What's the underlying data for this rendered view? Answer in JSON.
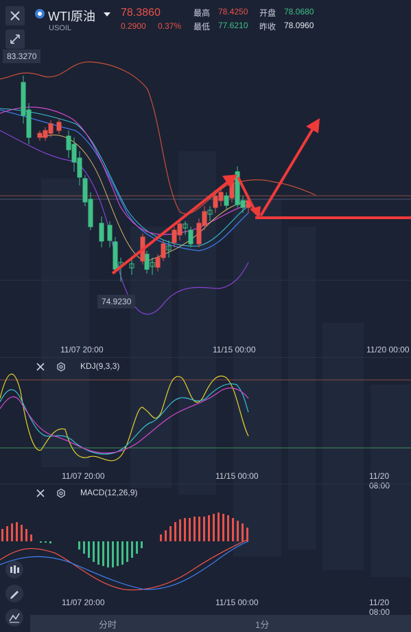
{
  "header": {
    "title": "WTI原油",
    "subtitle": "USOIL",
    "last_price": "78.3860",
    "change": "0.2900",
    "change_pct": "0.37%",
    "high_label": "最高",
    "high_value": "78.4250",
    "low_label": "最低",
    "low_value": "77.6210",
    "open_label": "开盘",
    "open_value": "78.0680",
    "prev_close_label": "昨收",
    "prev_close_value": "78.0960"
  },
  "main_chart": {
    "top_price_tag": "83.3270",
    "low_price_tag": "74.9230",
    "time_labels": [
      "11/07 20:00",
      "11/15 00:00",
      "11/20 00:00"
    ]
  },
  "kdj": {
    "title": "KDJ(9,3,3)",
    "time_labels": [
      "11/07 20:00",
      "11/15 00:00",
      "11/20 08:00"
    ]
  },
  "macd": {
    "title": "MACD(12,26,9)",
    "time_labels": [
      "11/07 20:00",
      "11/15 00:00",
      "11/20 08:00"
    ]
  },
  "bottom_tabs": [
    "分时",
    "1分"
  ],
  "colors": {
    "up": "#3fc087",
    "down": "#e9524b",
    "accent_arrow": "#f03a3a",
    "background": "#1b2233"
  },
  "icons": [
    "close-icon",
    "shrink-icon",
    "usoil-symbol-icon",
    "dropdown-caret-icon",
    "gear-icon",
    "candlestick-icon",
    "pencil-icon",
    "indicator-icon"
  ]
}
